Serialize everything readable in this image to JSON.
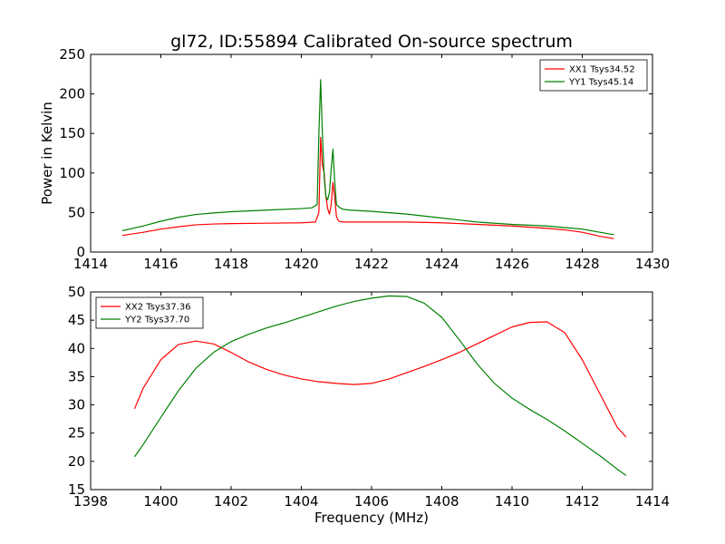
{
  "title": "gl72, ID:55894 Calibrated On-source spectrum",
  "colors": {
    "red": "#ff0000",
    "green": "#008000"
  },
  "chart_data": [
    {
      "type": "line",
      "title": "gl72, ID:55894 Calibrated On-source spectrum",
      "xlabel": "",
      "ylabel": "Power in Kelvin",
      "xlim": [
        1414,
        1430
      ],
      "ylim": [
        0,
        250
      ],
      "xticks": [
        1414,
        1416,
        1418,
        1420,
        1422,
        1424,
        1426,
        1428,
        1430
      ],
      "yticks": [
        0,
        50,
        100,
        150,
        200,
        250
      ],
      "legend": "top-right",
      "grid": false,
      "series": [
        {
          "name": "XX1 Tsys34.52",
          "color": "#ff0000",
          "x": [
            1414.9,
            1415.5,
            1416.0,
            1416.5,
            1417.0,
            1417.5,
            1418.0,
            1419.0,
            1420.0,
            1420.4,
            1420.5,
            1420.55,
            1420.6,
            1420.65,
            1420.7,
            1420.75,
            1420.8,
            1420.85,
            1420.9,
            1420.95,
            1421.0,
            1421.05,
            1421.1,
            1421.2,
            1422.0,
            1423.0,
            1424.0,
            1425.0,
            1426.0,
            1427.0,
            1427.5,
            1428.0,
            1428.5,
            1428.9
          ],
          "y": [
            21,
            25,
            29,
            32,
            34.5,
            35.5,
            36,
            36.5,
            37,
            38,
            50,
            145,
            110,
            100,
            70,
            55,
            48,
            60,
            88,
            70,
            45,
            40,
            38.5,
            38,
            38,
            38,
            37,
            35,
            33,
            30,
            28,
            25,
            20,
            17
          ]
        },
        {
          "name": "YY1 Tsys45.14",
          "color": "#008000",
          "x": [
            1414.9,
            1415.5,
            1416.0,
            1416.5,
            1417.0,
            1417.5,
            1418.0,
            1419.0,
            1420.0,
            1420.3,
            1420.45,
            1420.5,
            1420.55,
            1420.6,
            1420.65,
            1420.7,
            1420.75,
            1420.8,
            1420.85,
            1420.9,
            1420.95,
            1421.0,
            1421.1,
            1421.2,
            1421.4,
            1422.0,
            1423.0,
            1424.0,
            1425.0,
            1426.0,
            1427.0,
            1427.5,
            1428.0,
            1428.5,
            1428.9
          ],
          "y": [
            27,
            33,
            39,
            44,
            47.5,
            49.5,
            51,
            53,
            55,
            56,
            60,
            150,
            218,
            150,
            95,
            70,
            66,
            75,
            105,
            130,
            90,
            60,
            56,
            54,
            53,
            51.5,
            48,
            43,
            38,
            35,
            33,
            31,
            29,
            25,
            22
          ]
        }
      ]
    },
    {
      "type": "line",
      "title": "",
      "xlabel": "Frequency (MHz)",
      "ylabel": "",
      "xlim": [
        1398,
        1414
      ],
      "ylim": [
        15,
        50
      ],
      "xticks": [
        1398,
        1400,
        1402,
        1404,
        1406,
        1408,
        1410,
        1412,
        1414
      ],
      "yticks": [
        15,
        20,
        25,
        30,
        35,
        40,
        45,
        50
      ],
      "legend": "top-left",
      "grid": false,
      "series": [
        {
          "name": "XX2 Tsys37.36",
          "color": "#ff0000",
          "x": [
            1399.25,
            1399.5,
            1400.0,
            1400.5,
            1401.0,
            1401.5,
            1402.0,
            1402.5,
            1403.0,
            1403.5,
            1404.0,
            1404.5,
            1405.0,
            1405.5,
            1406.0,
            1406.5,
            1407.0,
            1407.5,
            1408.0,
            1408.5,
            1409.0,
            1409.5,
            1410.0,
            1410.5,
            1411.0,
            1411.5,
            1412.0,
            1412.5,
            1413.0,
            1413.25
          ],
          "y": [
            29.3,
            33,
            38,
            40.7,
            41.3,
            40.8,
            39.3,
            37.6,
            36.3,
            35.3,
            34.6,
            34.1,
            33.8,
            33.6,
            33.8,
            34.6,
            35.7,
            36.8,
            38,
            39.3,
            40.8,
            42.3,
            43.8,
            44.6,
            44.7,
            42.8,
            38,
            32,
            26,
            24.3
          ]
        },
        {
          "name": "YY2 Tsys37.70",
          "color": "#008000",
          "x": [
            1399.25,
            1399.5,
            1400.0,
            1400.5,
            1401.0,
            1401.5,
            1402.0,
            1402.5,
            1403.0,
            1403.5,
            1404.0,
            1404.5,
            1405.0,
            1405.5,
            1406.0,
            1406.5,
            1407.0,
            1407.5,
            1408.0,
            1408.5,
            1409.0,
            1409.5,
            1410.0,
            1410.5,
            1411.0,
            1411.5,
            1412.0,
            1412.5,
            1413.0,
            1413.25
          ],
          "y": [
            20.8,
            23,
            27.8,
            32.5,
            36.5,
            39.3,
            41.2,
            42.5,
            43.6,
            44.5,
            45.5,
            46.5,
            47.5,
            48.3,
            48.9,
            49.3,
            49.2,
            48,
            45.5,
            41.5,
            37.3,
            33.8,
            31.2,
            29.2,
            27.4,
            25.4,
            23.2,
            21,
            18.6,
            17.5
          ]
        }
      ]
    }
  ]
}
